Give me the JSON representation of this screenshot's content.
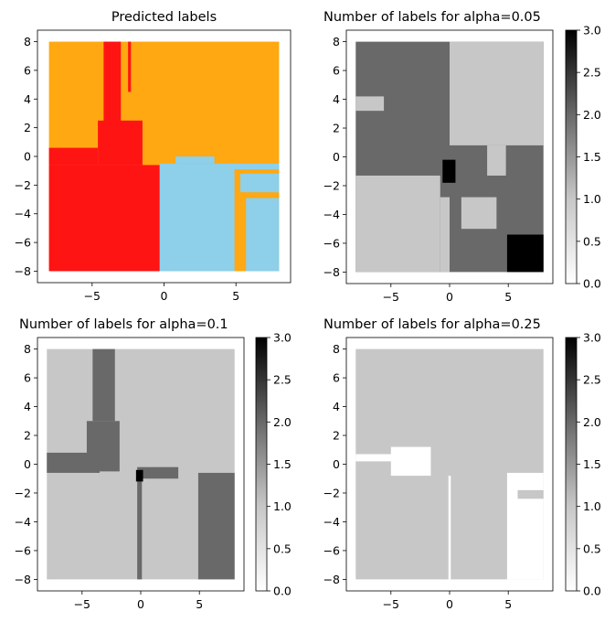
{
  "chart_data": [
    {
      "type": "heatmap",
      "title": "Predicted labels",
      "xlabel": "",
      "ylabel": "",
      "xlim": [
        -8.8,
        8.8
      ],
      "ylim": [
        -8.8,
        8.8
      ],
      "xticks": [
        -5,
        0,
        5
      ],
      "yticks": [
        8,
        6,
        4,
        2,
        0,
        -2,
        -4,
        -6,
        -8
      ],
      "grid": false,
      "categories": [
        "0",
        "1",
        "2"
      ],
      "colors": {
        "0": "#ffa812",
        "1": "#ff1414",
        "2": "#8ecfea"
      },
      "regions": [
        {
          "label": "0",
          "x": [
            -8,
            8
          ],
          "y": [
            -8,
            8
          ]
        },
        {
          "label": "1",
          "x": [
            -8,
            -0.3
          ],
          "y": [
            -8,
            -0.6
          ]
        },
        {
          "label": "1",
          "x": [
            -4.2,
            -3.0
          ],
          "y": [
            1.5,
            8
          ]
        },
        {
          "label": "1",
          "x": [
            -2.5,
            -2.3
          ],
          "y": [
            4.5,
            8
          ]
        },
        {
          "label": "1",
          "x": [
            -4.6,
            -1.5
          ],
          "y": [
            -0.6,
            2.5
          ]
        },
        {
          "label": "1",
          "x": [
            -8,
            -4.6
          ],
          "y": [
            -0.6,
            0.6
          ]
        },
        {
          "label": "2",
          "x": [
            -0.3,
            8
          ],
          "y": [
            -8,
            -0.5
          ]
        },
        {
          "label": "2",
          "x": [
            0.8,
            3.5
          ],
          "y": [
            -0.5,
            0
          ]
        },
        {
          "label": "0",
          "x": [
            4.9,
            5.3
          ],
          "y": [
            -8,
            -0.9
          ]
        },
        {
          "label": "0",
          "x": [
            4.9,
            8
          ],
          "y": [
            -1.2,
            -0.9
          ]
        },
        {
          "label": "0",
          "x": [
            5.3,
            8
          ],
          "y": [
            -2.9,
            -2.5
          ]
        },
        {
          "label": "0",
          "x": [
            5.3,
            5.7
          ],
          "y": [
            -8,
            -2.5
          ]
        }
      ]
    },
    {
      "type": "heatmap",
      "title": "Number of labels for alpha=0.05",
      "xlabel": "",
      "ylabel": "",
      "xlim": [
        -8.8,
        8.8
      ],
      "ylim": [
        -8.8,
        8.8
      ],
      "xticks": [
        -5,
        0,
        5
      ],
      "yticks": [
        8,
        6,
        4,
        2,
        0,
        -2,
        -4,
        -6,
        -8
      ],
      "grid": false,
      "colorbar": {
        "min": 0,
        "max": 3,
        "ticks": [
          0.0,
          0.5,
          1.0,
          1.5,
          2.0,
          2.5,
          3.0
        ],
        "tick_labels": [
          "0.0",
          "0.5",
          "1.0",
          "1.5",
          "2.0",
          "2.5",
          "3.0"
        ],
        "cmap": "Greys"
      },
      "regions": [
        {
          "value": 2,
          "x": [
            -8,
            8
          ],
          "y": [
            -8,
            8
          ]
        },
        {
          "value": 1,
          "x": [
            0,
            8
          ],
          "y": [
            0.8,
            8
          ]
        },
        {
          "value": 1,
          "x": [
            -8,
            -5.6
          ],
          "y": [
            3.2,
            4.2
          ]
        },
        {
          "value": 1,
          "x": [
            -8,
            -0.8
          ],
          "y": [
            -8,
            -1.3
          ]
        },
        {
          "value": 1,
          "x": [
            -0.8,
            0
          ],
          "y": [
            -8,
            -2.8
          ]
        },
        {
          "value": 1,
          "x": [
            1,
            4
          ],
          "y": [
            -5.0,
            -2.8
          ]
        },
        {
          "value": 1,
          "x": [
            3.2,
            4.8
          ],
          "y": [
            -1.3,
            0.8
          ]
        },
        {
          "value": 3,
          "x": [
            -0.6,
            0.5
          ],
          "y": [
            -1.8,
            -0.2
          ]
        },
        {
          "value": 3,
          "x": [
            4.9,
            8
          ],
          "y": [
            -8,
            -5.4
          ]
        }
      ]
    },
    {
      "type": "heatmap",
      "title": "Number of labels for alpha=0.1",
      "xlabel": "",
      "ylabel": "",
      "xlim": [
        -8.8,
        8.8
      ],
      "ylim": [
        -8.8,
        8.8
      ],
      "xticks": [
        -5,
        0,
        5
      ],
      "yticks": [
        8,
        6,
        4,
        2,
        0,
        -2,
        -4,
        -6,
        -8
      ],
      "grid": false,
      "colorbar": {
        "min": 0,
        "max": 3,
        "ticks": [
          0.0,
          0.5,
          1.0,
          1.5,
          2.0,
          2.5,
          3.0
        ],
        "tick_labels": [
          "0.0",
          "0.5",
          "1.0",
          "1.5",
          "2.0",
          "2.5",
          "3.0"
        ],
        "cmap": "Greys"
      },
      "regions": [
        {
          "value": 1,
          "x": [
            -8,
            8
          ],
          "y": [
            -8,
            8
          ]
        },
        {
          "value": 2,
          "x": [
            -4.1,
            -2.2
          ],
          "y": [
            3.0,
            8
          ]
        },
        {
          "value": 2,
          "x": [
            -4.6,
            -1.8
          ],
          "y": [
            -0.5,
            3.0
          ]
        },
        {
          "value": 2,
          "x": [
            -8,
            -3.5
          ],
          "y": [
            -0.6,
            0.8
          ]
        },
        {
          "value": 2,
          "x": [
            -0.3,
            3.2
          ],
          "y": [
            -1.0,
            -0.2
          ]
        },
        {
          "value": 2,
          "x": [
            4.9,
            8
          ],
          "y": [
            -8,
            -0.6
          ]
        },
        {
          "value": 2,
          "x": [
            -0.3,
            0.1
          ],
          "y": [
            -8,
            -1.0
          ]
        },
        {
          "value": 3,
          "x": [
            -0.4,
            0.2
          ],
          "y": [
            -1.2,
            -0.4
          ]
        }
      ]
    },
    {
      "type": "heatmap",
      "title": "Number of labels for alpha=0.25",
      "xlabel": "",
      "ylabel": "",
      "xlim": [
        -8.8,
        8.8
      ],
      "ylim": [
        -8.8,
        8.8
      ],
      "xticks": [
        -5,
        0,
        5
      ],
      "yticks": [
        8,
        6,
        4,
        2,
        0,
        -2,
        -4,
        -6,
        -8
      ],
      "grid": false,
      "colorbar": {
        "min": 0,
        "max": 3,
        "ticks": [
          0.0,
          0.5,
          1.0,
          1.5,
          2.0,
          2.5,
          3.0
        ],
        "tick_labels": [
          "0.0",
          "0.5",
          "1.0",
          "1.5",
          "2.0",
          "2.5",
          "3.0"
        ],
        "cmap": "Greys"
      },
      "regions": [
        {
          "value": 1,
          "x": [
            -8,
            8
          ],
          "y": [
            -8,
            8
          ]
        },
        {
          "value": 0,
          "x": [
            -5.0,
            -1.6
          ],
          "y": [
            -0.8,
            1.2
          ]
        },
        {
          "value": 0,
          "x": [
            -8,
            -4.5
          ],
          "y": [
            0.2,
            0.7
          ]
        },
        {
          "value": 0,
          "x": [
            -0.1,
            0.1
          ],
          "y": [
            -8,
            -0.8
          ]
        },
        {
          "value": 0,
          "x": [
            4.9,
            8
          ],
          "y": [
            -8,
            -0.6
          ]
        },
        {
          "value": 1,
          "x": [
            5.8,
            8
          ],
          "y": [
            -2.4,
            -1.8
          ]
        }
      ]
    }
  ]
}
